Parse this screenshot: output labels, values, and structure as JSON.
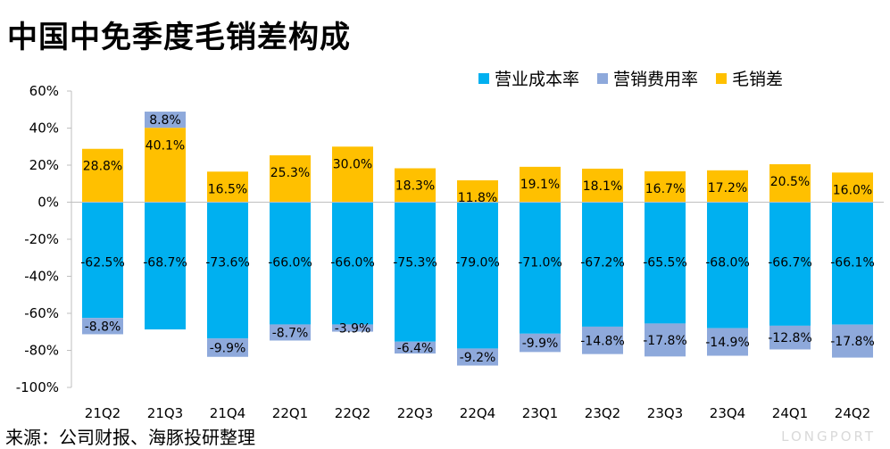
{
  "page": {
    "title": "中国中免季度毛销差构成",
    "source": "来源：公司财报、海豚投研整理",
    "watermark": "LONGPORT"
  },
  "colors": {
    "cost": "#00B0F0",
    "selling": "#8EA9DB",
    "margin": "#FFC000"
  },
  "chart_data": {
    "type": "bar",
    "stacked": true,
    "title": "中国中免季度毛销差构成",
    "categories": [
      "21Q2",
      "21Q3",
      "21Q4",
      "22Q1",
      "22Q2",
      "22Q3",
      "22Q4",
      "23Q1",
      "23Q2",
      "23Q3",
      "23Q4",
      "24Q1",
      "24Q2"
    ],
    "ylim": [
      -100,
      60
    ],
    "yticks": [
      60,
      40,
      20,
      0,
      -20,
      -40,
      -60,
      -80,
      -100
    ],
    "ytick_labels": [
      "60%",
      "40%",
      "20%",
      "0%",
      "-20%",
      "-40%",
      "-60%",
      "-80%",
      "-100%"
    ],
    "legend_position": "top-right",
    "grid": false,
    "series": [
      {
        "name": "营业成本率",
        "color": "#00B0F0",
        "values": [
          -62.5,
          -68.7,
          -73.6,
          -66.0,
          -66.0,
          -75.3,
          -79.0,
          -71.0,
          -67.2,
          -65.5,
          -68.0,
          -66.7,
          -66.1
        ],
        "labels": [
          "-62.5%",
          "-68.7%",
          "-73.6%",
          "-66.0%",
          "-66.0%",
          "-75.3%",
          "-79.0%",
          "-71.0%",
          "-67.2%",
          "-65.5%",
          "-68.0%",
          "-66.7%",
          "-66.1%"
        ]
      },
      {
        "name": "营销费用率",
        "color": "#8EA9DB",
        "values": [
          -8.8,
          8.8,
          -9.9,
          -8.7,
          -3.9,
          -6.4,
          -9.2,
          -9.9,
          -14.8,
          -17.8,
          -14.9,
          -12.8,
          -17.8
        ],
        "labels": [
          "-8.8%",
          "8.8%",
          "-9.9%",
          "-8.7%",
          "-3.9%",
          "-6.4%",
          "-9.2%",
          "-9.9%",
          "-14.8%",
          "-17.8%",
          "-14.9%",
          "-12.8%",
          "-17.8%"
        ]
      },
      {
        "name": "毛销差",
        "color": "#FFC000",
        "values": [
          28.8,
          40.1,
          16.5,
          25.3,
          30.0,
          18.3,
          11.8,
          19.1,
          18.1,
          16.7,
          17.2,
          20.5,
          16.0
        ],
        "labels": [
          "28.8%",
          "40.1%",
          "16.5%",
          "25.3%",
          "30.0%",
          "18.3%",
          "11.8%",
          "19.1%",
          "18.1%",
          "16.7%",
          "17.2%",
          "20.5%",
          "16.0%"
        ]
      }
    ]
  }
}
